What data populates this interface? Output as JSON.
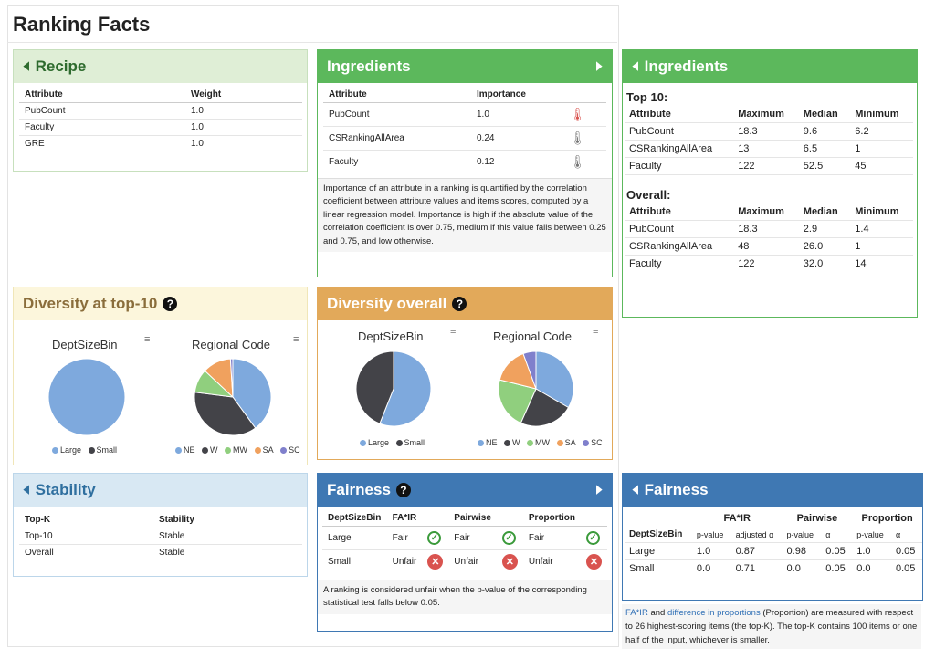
{
  "page_title": "Ranking Facts",
  "recipe": {
    "title": "Recipe",
    "headers": [
      "Attribute",
      "Weight"
    ],
    "rows": [
      [
        "PubCount",
        "1.0"
      ],
      [
        "Faculty",
        "1.0"
      ],
      [
        "GRE",
        "1.0"
      ]
    ]
  },
  "ingredients": {
    "title": "Ingredients",
    "headers": [
      "Attribute",
      "Importance"
    ],
    "rows": [
      [
        "PubCount",
        "1.0"
      ],
      [
        "CSRankingAllArea",
        "0.24"
      ],
      [
        "Faculty",
        "0.12"
      ]
    ],
    "note": "Importance of an attribute in a ranking is quantified by the correlation coefficient between attribute values and items scores, computed by a linear regression model. Importance is high if the absolute value of the correlation coefficient is over 0.75, medium if this value falls between 0.25 and 0.75, and low otherwise."
  },
  "ingredients_detail": {
    "title": "Ingredients",
    "top10_label": "Top 10:",
    "overall_label": "Overall:",
    "headers": [
      "Attribute",
      "Maximum",
      "Median",
      "Minimum"
    ],
    "top10_rows": [
      [
        "PubCount",
        "18.3",
        "9.6",
        "6.2"
      ],
      [
        "CSRankingAllArea",
        "13",
        "6.5",
        "1"
      ],
      [
        "Faculty",
        "122",
        "52.5",
        "45"
      ]
    ],
    "overall_rows": [
      [
        "PubCount",
        "18.3",
        "2.9",
        "1.4"
      ],
      [
        "CSRankingAllArea",
        "48",
        "26.0",
        "1"
      ],
      [
        "Faculty",
        "122",
        "32.0",
        "14"
      ]
    ]
  },
  "diversity_top10": {
    "title": "Diversity at top-10",
    "chart1_title": "DeptSizeBin",
    "chart2_title": "Regional Code",
    "legend1": [
      "Large",
      "Small"
    ],
    "legend2": [
      "NE",
      "W",
      "MW",
      "SA",
      "SC"
    ]
  },
  "diversity_overall": {
    "title": "Diversity overall",
    "chart1_title": "DeptSizeBin",
    "chart2_title": "Regional Code",
    "legend1": [
      "Large",
      "Small"
    ],
    "legend2": [
      "NE",
      "W",
      "MW",
      "SA",
      "SC"
    ]
  },
  "stability": {
    "title": "Stability",
    "headers": [
      "Top-K",
      "Stability"
    ],
    "rows": [
      [
        "Top-10",
        "Stable"
      ],
      [
        "Overall",
        "Stable"
      ]
    ]
  },
  "fairness": {
    "title": "Fairness",
    "headers": [
      "DeptSizeBin",
      "FA*IR",
      "Pairwise",
      "Proportion"
    ],
    "rows": [
      [
        "Large",
        "Fair",
        "Fair",
        "Fair"
      ],
      [
        "Small",
        "Unfair",
        "Unfair",
        "Unfair"
      ]
    ],
    "note": "A ranking is considered unfair when the p-value of the corresponding statistical test falls below 0.05."
  },
  "fairness_detail": {
    "title": "Fairness",
    "group_headers": [
      "FA*IR",
      "Pairwise",
      "Proportion"
    ],
    "sub_headers": [
      "DeptSizeBin",
      "p-value",
      "adjusted α",
      "p-value",
      "α",
      "p-value",
      "α"
    ],
    "rows": [
      [
        "Large",
        "1.0",
        "0.87",
        "0.98",
        "0.05",
        "1.0",
        "0.05"
      ],
      [
        "Small",
        "0.0",
        "0.71",
        "0.0",
        "0.05",
        "0.0",
        "0.05"
      ]
    ],
    "note_link1": "FA*IR",
    "note_and": " and ",
    "note_link2": "difference in proportions",
    "note_rest": " (Proportion) are measured with respect to 26 highest-scoring items (the top-K). The top-K contains 100 items or one half of the input, whichever is smaller."
  },
  "colors": {
    "recipe_head": "#dfeed6",
    "recipe_text": "#2e6b2e",
    "ingredients_head": "#5cb85c",
    "diversity10_head": "#fcf6dc",
    "diversity10_text": "#8a6d3b",
    "diversity_overall_head": "#e2a95a",
    "stability_head": "#d8e8f3",
    "stability_text": "#2f6f9f",
    "fairness_head": "#3f78b3",
    "pie_blue": "#7ea9dd",
    "pie_dark": "#434348",
    "pie_green": "#90cf7e",
    "pie_orange": "#f0a15e",
    "pie_purple": "#8080cc"
  },
  "chart_data": [
    {
      "type": "pie",
      "title": "DeptSizeBin",
      "categories": [
        "Large",
        "Small"
      ],
      "values": [
        100,
        0
      ]
    },
    {
      "type": "pie",
      "title": "Regional Code",
      "categories": [
        "NE",
        "W",
        "MW",
        "SA",
        "SC"
      ],
      "values": [
        40,
        37,
        10,
        12,
        1
      ]
    },
    {
      "type": "pie",
      "title": "DeptSizeBin",
      "categories": [
        "Large",
        "Small"
      ],
      "values": [
        56,
        44
      ]
    },
    {
      "type": "pie",
      "title": "Regional Code",
      "categories": [
        "NE",
        "W",
        "MW",
        "SA",
        "SC"
      ],
      "values": [
        30,
        21,
        20,
        14,
        5
      ]
    }
  ]
}
